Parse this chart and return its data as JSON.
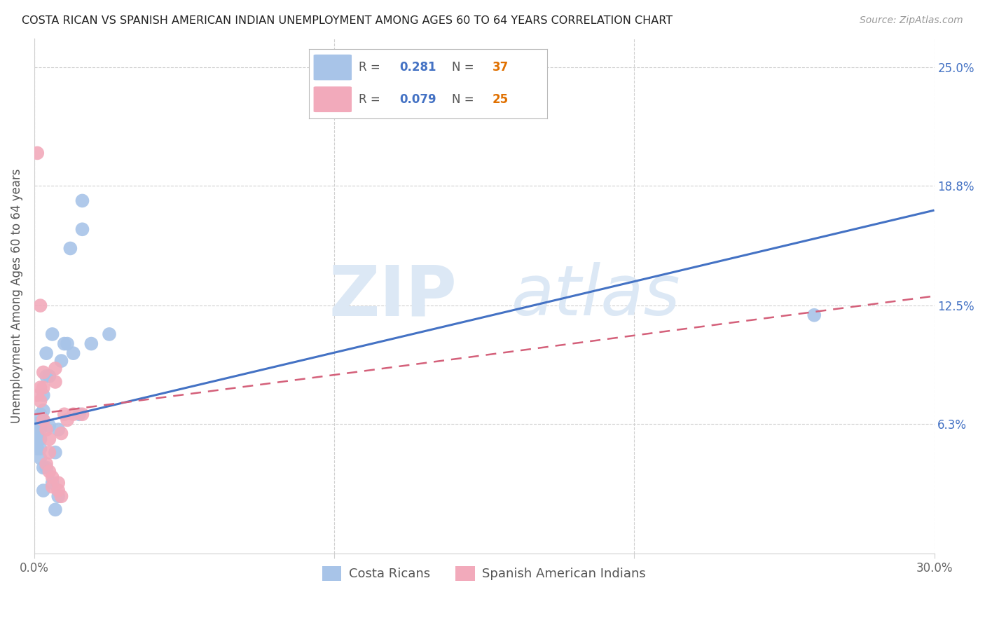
{
  "title": "COSTA RICAN VS SPANISH AMERICAN INDIAN UNEMPLOYMENT AMONG AGES 60 TO 64 YEARS CORRELATION CHART",
  "source": "Source: ZipAtlas.com",
  "ylabel": "Unemployment Among Ages 60 to 64 years",
  "xlim": [
    0.0,
    0.3
  ],
  "ylim": [
    -0.005,
    0.265
  ],
  "xtick_positions": [
    0.0,
    0.1,
    0.2,
    0.3
  ],
  "xtick_labels": [
    "0.0%",
    "",
    "",
    "30.0%"
  ],
  "ytick_values": [
    0.063,
    0.125,
    0.188,
    0.25
  ],
  "ytick_labels": [
    "6.3%",
    "12.5%",
    "18.8%",
    "25.0%"
  ],
  "grid_color": "#d0d0d0",
  "background_color": "#ffffff",
  "blue_color": "#a8c4e8",
  "pink_color": "#f2aabb",
  "blue_line_color": "#4472c4",
  "pink_line_color": "#d4607a",
  "label_costa": "Costa Ricans",
  "label_spanish": "Spanish American Indians",
  "legend_r1_val": "0.281",
  "legend_n1_val": "37",
  "legend_r2_val": "0.079",
  "legend_n2_val": "25",
  "costa_x": [
    0.001,
    0.001,
    0.001,
    0.001,
    0.002,
    0.002,
    0.002,
    0.002,
    0.002,
    0.002,
    0.003,
    0.003,
    0.003,
    0.003,
    0.003,
    0.004,
    0.004,
    0.004,
    0.005,
    0.005,
    0.006,
    0.006,
    0.007,
    0.007,
    0.008,
    0.008,
    0.009,
    0.01,
    0.011,
    0.012,
    0.013,
    0.015,
    0.016,
    0.016,
    0.019,
    0.025,
    0.26
  ],
  "costa_y": [
    0.063,
    0.058,
    0.055,
    0.05,
    0.063,
    0.06,
    0.068,
    0.055,
    0.05,
    0.045,
    0.078,
    0.07,
    0.065,
    0.04,
    0.028,
    0.088,
    0.1,
    0.04,
    0.088,
    0.062,
    0.11,
    0.032,
    0.048,
    0.018,
    0.025,
    0.06,
    0.096,
    0.105,
    0.105,
    0.155,
    0.1,
    0.068,
    0.18,
    0.165,
    0.105,
    0.11,
    0.12
  ],
  "spanish_x": [
    0.001,
    0.001,
    0.002,
    0.002,
    0.002,
    0.003,
    0.003,
    0.003,
    0.004,
    0.004,
    0.005,
    0.005,
    0.005,
    0.006,
    0.006,
    0.007,
    0.007,
    0.008,
    0.008,
    0.009,
    0.009,
    0.01,
    0.011,
    0.013,
    0.016
  ],
  "spanish_y": [
    0.205,
    0.078,
    0.082,
    0.075,
    0.125,
    0.09,
    0.082,
    0.065,
    0.06,
    0.042,
    0.055,
    0.048,
    0.038,
    0.035,
    0.03,
    0.092,
    0.085,
    0.032,
    0.028,
    0.058,
    0.025,
    0.068,
    0.065,
    0.068,
    0.068
  ],
  "blue_line_x": [
    0.0,
    0.3
  ],
  "blue_line_y": [
    0.063,
    0.175
  ],
  "pink_line_x": [
    0.0,
    0.3
  ],
  "pink_line_y": [
    0.068,
    0.13
  ]
}
